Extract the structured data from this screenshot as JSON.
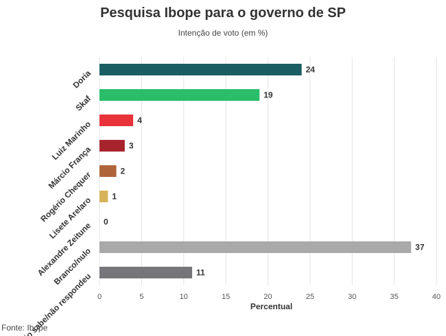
{
  "chart_data": {
    "type": "bar",
    "orientation": "horizontal",
    "title": "Pesquisa Ibope para o governo de SP",
    "subtitle": "Intenção de voto (em %)",
    "source": "Fonte: Ibope",
    "xlabel": "Percentual",
    "ylabel": "",
    "xlim": [
      0,
      40
    ],
    "xticks": [
      0,
      5,
      10,
      15,
      20,
      25,
      30,
      35,
      40
    ],
    "grid": true,
    "categories": [
      "Doria",
      "Skaf",
      "Luiz Marinho",
      "Márcio França",
      "Rogério Chequer",
      "Lisete Arelaro",
      "Alexandre Zeitune",
      "Branco/nulo",
      "Não sabe/não respondeu"
    ],
    "values": [
      24,
      19,
      4,
      3,
      2,
      1,
      0,
      37,
      11
    ],
    "colors": [
      "#1a5e63",
      "#2abd6a",
      "#e8333a",
      "#a8242c",
      "#b0643a",
      "#d6b25a",
      "#cccccc",
      "#a9a9a9",
      "#76767a"
    ]
  }
}
